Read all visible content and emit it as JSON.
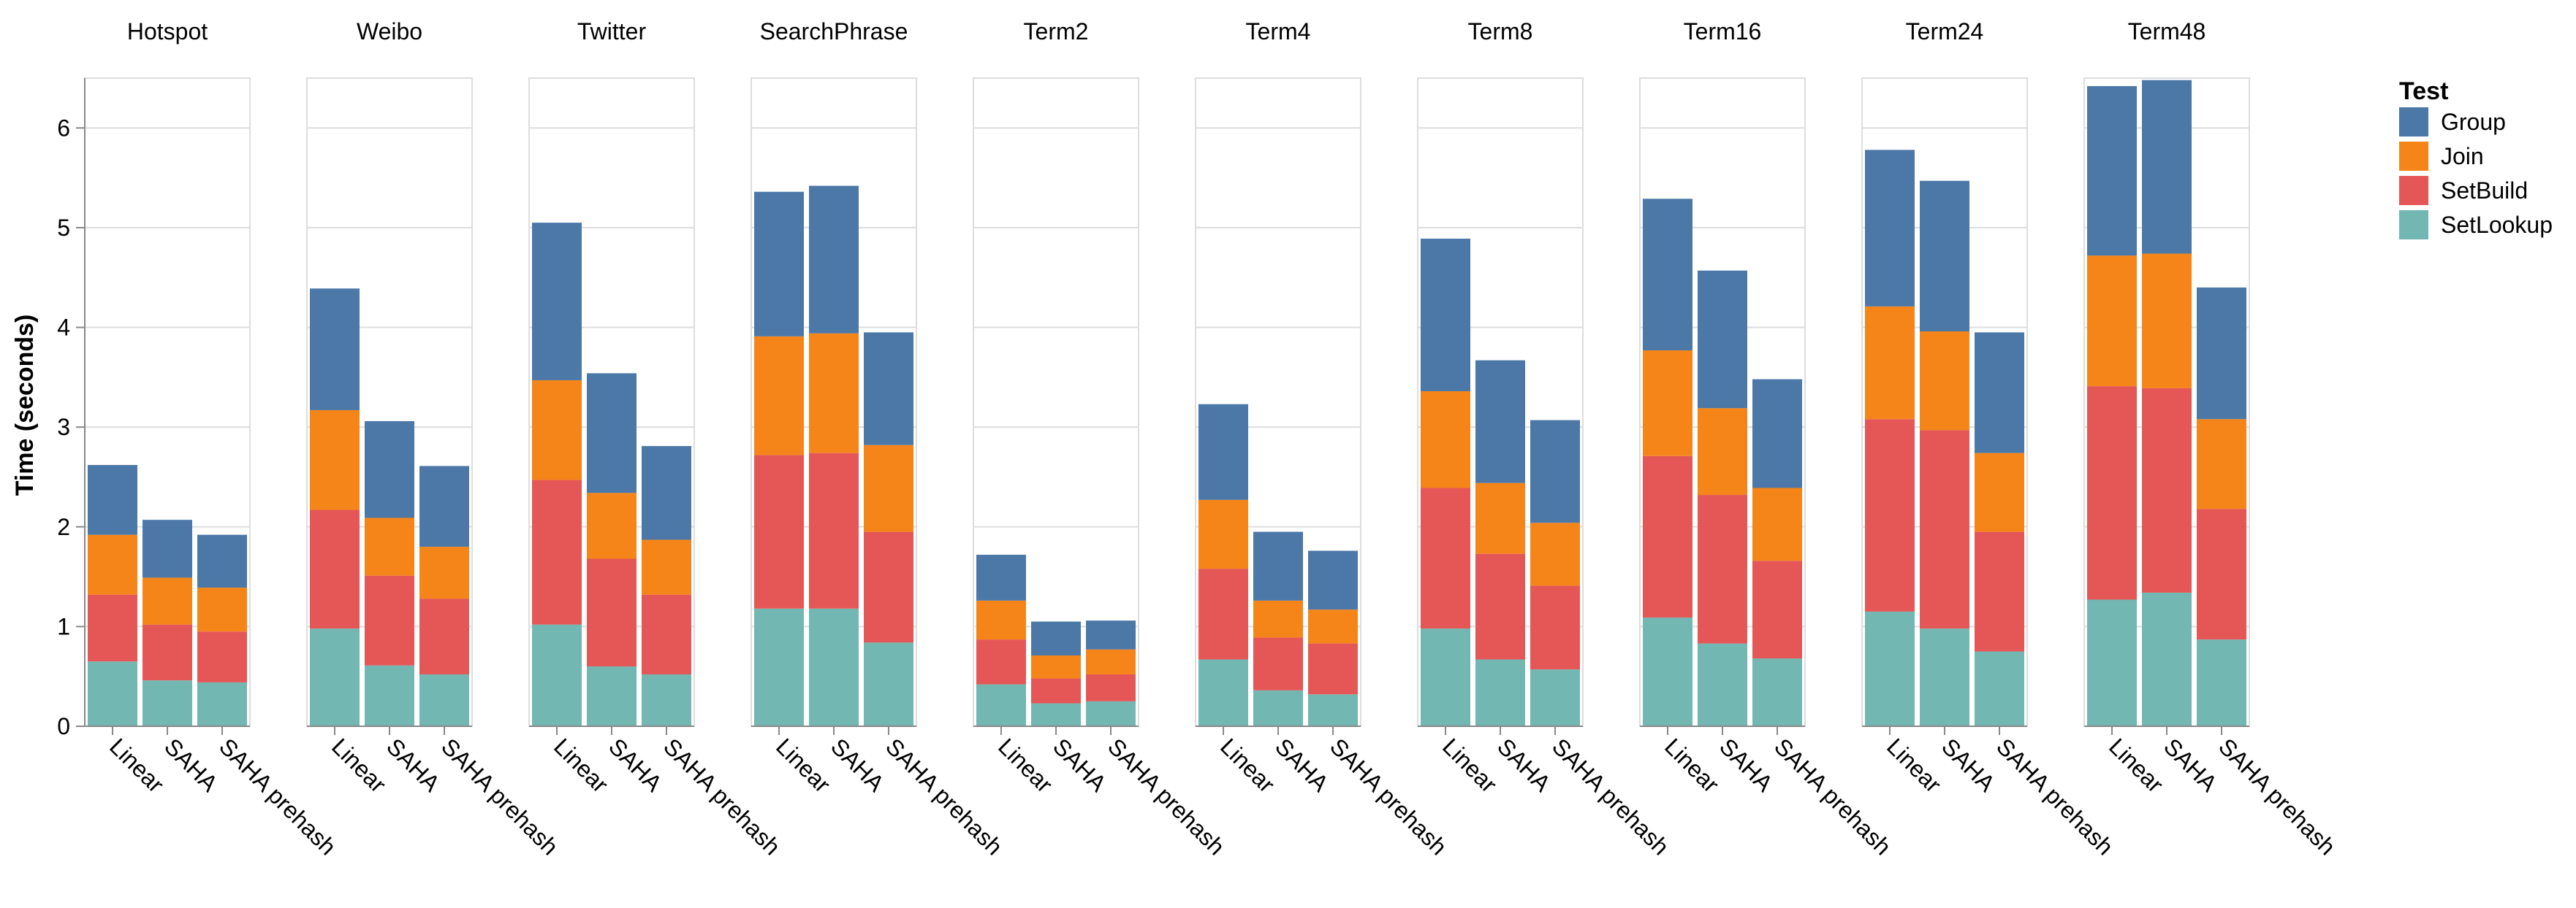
{
  "chart_data": {
    "type": "bar",
    "stacked": true,
    "ylabel": "Time (seconds)",
    "ylim": [
      0,
      6.5
    ],
    "yticks": [
      0,
      1,
      2,
      3,
      4,
      5,
      6
    ],
    "grid": true,
    "legend": {
      "title": "Test",
      "position": "right",
      "entries": [
        {
          "name": "Group",
          "color": "#4c78a8"
        },
        {
          "name": "Join",
          "color": "#f58518"
        },
        {
          "name": "SetBuild",
          "color": "#e45756"
        },
        {
          "name": "SetLookup",
          "color": "#72b7b2"
        }
      ]
    },
    "categories": [
      "Linear",
      "SAHA",
      "SAHA prehash"
    ],
    "stack_order_bottom_to_top": [
      "SetLookup",
      "SetBuild",
      "Join",
      "Group"
    ],
    "facets": [
      {
        "title": "Hotspot",
        "bars": [
          {
            "category": "Linear",
            "SetLookup": 0.65,
            "SetBuild": 0.67,
            "Join": 0.6,
            "Group": 0.7
          },
          {
            "category": "SAHA",
            "SetLookup": 0.46,
            "SetBuild": 0.56,
            "Join": 0.47,
            "Group": 0.58
          },
          {
            "category": "SAHA prehash",
            "SetLookup": 0.44,
            "SetBuild": 0.51,
            "Join": 0.44,
            "Group": 0.53
          }
        ]
      },
      {
        "title": "Weibo",
        "bars": [
          {
            "category": "Linear",
            "SetLookup": 0.98,
            "SetBuild": 1.19,
            "Join": 1.0,
            "Group": 1.22
          },
          {
            "category": "SAHA",
            "SetLookup": 0.61,
            "SetBuild": 0.9,
            "Join": 0.58,
            "Group": 0.97
          },
          {
            "category": "SAHA prehash",
            "SetLookup": 0.52,
            "SetBuild": 0.76,
            "Join": 0.52,
            "Group": 0.81
          }
        ]
      },
      {
        "title": "Twitter",
        "bars": [
          {
            "category": "Linear",
            "SetLookup": 1.02,
            "SetBuild": 1.45,
            "Join": 1.0,
            "Group": 1.58
          },
          {
            "category": "SAHA",
            "SetLookup": 0.6,
            "SetBuild": 1.08,
            "Join": 0.66,
            "Group": 1.2
          },
          {
            "category": "SAHA prehash",
            "SetLookup": 0.52,
            "SetBuild": 0.8,
            "Join": 0.55,
            "Group": 0.94
          }
        ]
      },
      {
        "title": "SearchPhrase",
        "bars": [
          {
            "category": "Linear",
            "SetLookup": 1.18,
            "SetBuild": 1.54,
            "Join": 1.19,
            "Group": 1.45
          },
          {
            "category": "SAHA",
            "SetLookup": 1.18,
            "SetBuild": 1.56,
            "Join": 1.2,
            "Group": 1.48
          },
          {
            "category": "SAHA prehash",
            "SetLookup": 0.84,
            "SetBuild": 1.11,
            "Join": 0.87,
            "Group": 1.13
          }
        ]
      },
      {
        "title": "Term2",
        "bars": [
          {
            "category": "Linear",
            "SetLookup": 0.42,
            "SetBuild": 0.45,
            "Join": 0.39,
            "Group": 0.46
          },
          {
            "category": "SAHA",
            "SetLookup": 0.23,
            "SetBuild": 0.25,
            "Join": 0.23,
            "Group": 0.34
          },
          {
            "category": "SAHA prehash",
            "SetLookup": 0.25,
            "SetBuild": 0.27,
            "Join": 0.25,
            "Group": 0.29
          }
        ]
      },
      {
        "title": "Term4",
        "bars": [
          {
            "category": "Linear",
            "SetLookup": 0.67,
            "SetBuild": 0.91,
            "Join": 0.69,
            "Group": 0.96
          },
          {
            "category": "SAHA",
            "SetLookup": 0.36,
            "SetBuild": 0.53,
            "Join": 0.37,
            "Group": 0.69
          },
          {
            "category": "SAHA prehash",
            "SetLookup": 0.32,
            "SetBuild": 0.51,
            "Join": 0.34,
            "Group": 0.59
          }
        ]
      },
      {
        "title": "Term8",
        "bars": [
          {
            "category": "Linear",
            "SetLookup": 0.98,
            "SetBuild": 1.41,
            "Join": 0.97,
            "Group": 1.53
          },
          {
            "category": "SAHA",
            "SetLookup": 0.67,
            "SetBuild": 1.06,
            "Join": 0.71,
            "Group": 1.23
          },
          {
            "category": "SAHA prehash",
            "SetLookup": 0.57,
            "SetBuild": 0.84,
            "Join": 0.63,
            "Group": 1.03
          }
        ]
      },
      {
        "title": "Term16",
        "bars": [
          {
            "category": "Linear",
            "SetLookup": 1.09,
            "SetBuild": 1.62,
            "Join": 1.06,
            "Group": 1.52
          },
          {
            "category": "SAHA",
            "SetLookup": 0.83,
            "SetBuild": 1.49,
            "Join": 0.87,
            "Group": 1.38
          },
          {
            "category": "SAHA prehash",
            "SetLookup": 0.68,
            "SetBuild": 0.98,
            "Join": 0.73,
            "Group": 1.09
          }
        ]
      },
      {
        "title": "Term24",
        "bars": [
          {
            "category": "Linear",
            "SetLookup": 1.15,
            "SetBuild": 1.93,
            "Join": 1.13,
            "Group": 1.57
          },
          {
            "category": "SAHA",
            "SetLookup": 0.98,
            "SetBuild": 1.99,
            "Join": 0.99,
            "Group": 1.51
          },
          {
            "category": "SAHA prehash",
            "SetLookup": 0.75,
            "SetBuild": 1.2,
            "Join": 0.79,
            "Group": 1.21
          }
        ]
      },
      {
        "title": "Term48",
        "bars": [
          {
            "category": "Linear",
            "SetLookup": 1.27,
            "SetBuild": 2.14,
            "Join": 1.31,
            "Group": 1.7
          },
          {
            "category": "SAHA",
            "SetLookup": 1.34,
            "SetBuild": 2.05,
            "Join": 1.35,
            "Group": 1.74
          },
          {
            "category": "SAHA prehash",
            "SetLookup": 0.87,
            "SetBuild": 1.31,
            "Join": 0.9,
            "Group": 1.32
          }
        ]
      }
    ]
  }
}
